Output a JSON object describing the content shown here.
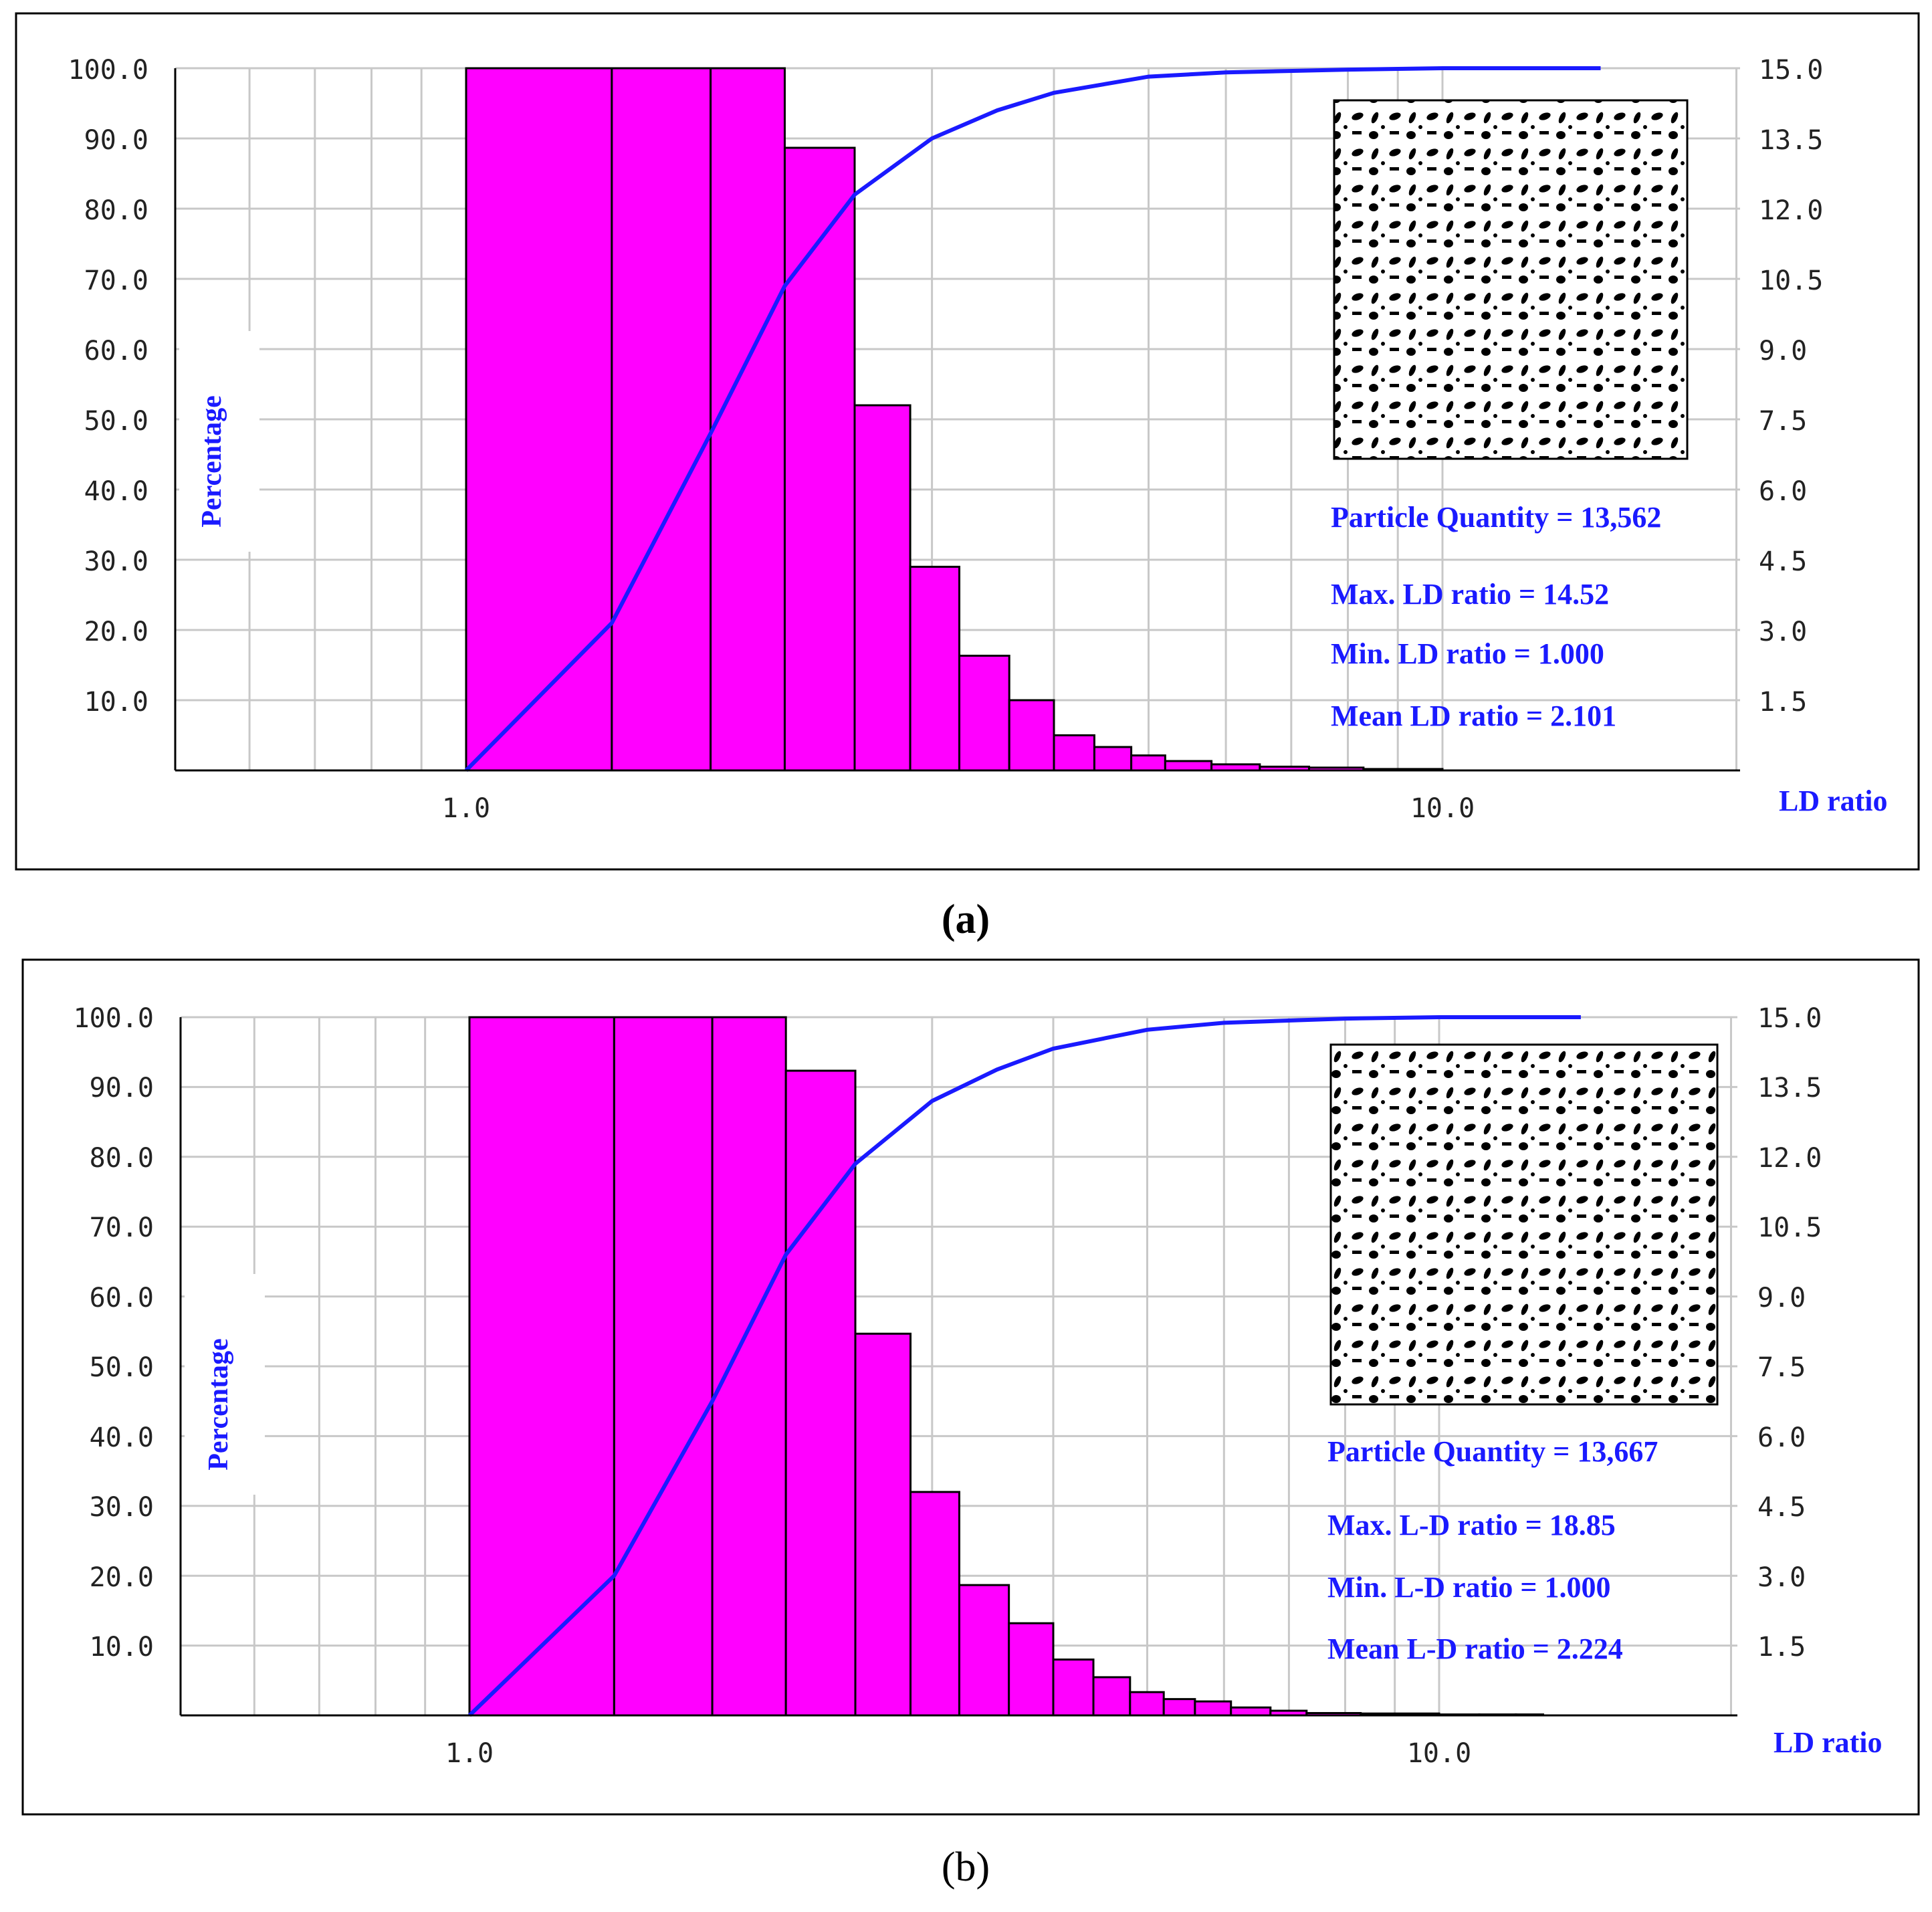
{
  "colors": {
    "bar_fill": "#ff00ff",
    "bar_stroke": "#000000",
    "curve": "#1a1aff",
    "grid": "#c8c8c8",
    "label_text": "#1a1aff",
    "tick_text": "#222222"
  },
  "chart_data": [
    {
      "caption": "(a)",
      "type": "bar",
      "subtype": "histogram with cumulative line, log x-axis",
      "x_scale": "log",
      "xlabel": "LD ratio",
      "ylabel": "Percentage",
      "left_ticks": [
        "100.0",
        "90.0",
        "80.0",
        "70.0",
        "60.0",
        "50.0",
        "40.0",
        "30.0",
        "20.0",
        "10.0"
      ],
      "right_ticks": [
        "15.0",
        "13.5",
        "12.0",
        "10.5",
        "9.0",
        "7.5",
        "6.0",
        "4.5",
        "3.0",
        "1.5"
      ],
      "x_ticks": [
        {
          "value": 1,
          "label": "1.0"
        },
        {
          "value": 10,
          "label": "10.0"
        }
      ],
      "xlim": [
        0.5,
        18
      ],
      "ylim_left": [
        0,
        100
      ],
      "ylim_right": [
        0,
        15
      ],
      "bin_edges": [
        1.0,
        1.41,
        1.78,
        2.12,
        2.5,
        2.85,
        3.2,
        3.6,
        4.0,
        4.4,
        4.8,
        5.2,
        5.8,
        6.5,
        7.3,
        8.3,
        10.0
      ],
      "bar_heights_right_axis": [
        15.0,
        15.0,
        15.0,
        13.3,
        7.8,
        4.35,
        2.45,
        1.5,
        0.75,
        0.5,
        0.32,
        0.2,
        0.13,
        0.08,
        0.06,
        0.03
      ],
      "cumulative_percent": {
        "x": [
          1.0,
          1.41,
          1.78,
          2.12,
          2.5,
          3.0,
          3.5,
          4.0,
          5.0,
          6.0,
          8.0,
          10.0,
          14.52
        ],
        "y": [
          0,
          21,
          48,
          69,
          82,
          90,
          94,
          96.5,
          98.8,
          99.4,
          99.8,
          100,
          100
        ]
      },
      "stats": [
        "Particle  Quantity  = 13,562",
        "Max. LD ratio  = 14.52",
        "Min. LD ratio  = 1.000",
        "Mean LD ratio  = 2.101"
      ]
    },
    {
      "caption": "(b)",
      "type": "bar",
      "subtype": "histogram with cumulative line, log x-axis",
      "x_scale": "log",
      "xlabel": "LD ratio",
      "ylabel": "Percentage",
      "left_ticks": [
        "100.0",
        "90.0",
        "80.0",
        "70.0",
        "60.0",
        "50.0",
        "40.0",
        "30.0",
        "20.0",
        "10.0"
      ],
      "right_ticks": [
        "15.0",
        "13.5",
        "12.0",
        "10.5",
        "9.0",
        "7.5",
        "6.0",
        "4.5",
        "3.0",
        "1.5"
      ],
      "x_ticks": [
        {
          "value": 1,
          "label": "1.0"
        },
        {
          "value": 10,
          "label": "10.0"
        }
      ],
      "xlim": [
        0.5,
        18
      ],
      "ylim_left": [
        0,
        100
      ],
      "ylim_right": [
        0,
        15
      ],
      "bin_edges": [
        1.0,
        1.41,
        1.78,
        2.12,
        2.5,
        2.85,
        3.2,
        3.6,
        4.0,
        4.4,
        4.8,
        5.2,
        5.6,
        6.1,
        6.7,
        7.3,
        8.3,
        10.0,
        11.0,
        12.0,
        12.8
      ],
      "bar_heights_right_axis": [
        15.0,
        15.0,
        15.0,
        13.85,
        8.2,
        4.8,
        2.8,
        1.98,
        1.2,
        0.82,
        0.5,
        0.35,
        0.3,
        0.17,
        0.1,
        0.05,
        0.04,
        0.02,
        0.02,
        0.02
      ],
      "cumulative_percent": {
        "x": [
          1.0,
          1.41,
          1.78,
          2.12,
          2.5,
          3.0,
          3.5,
          4.0,
          5.0,
          6.0,
          8.0,
          10.0,
          14.0
        ],
        "y": [
          0,
          20,
          45,
          66,
          79,
          88,
          92.5,
          95.5,
          98.2,
          99.2,
          99.8,
          100,
          100
        ]
      },
      "stats": [
        "Particle  Quantity  = 13,667",
        "Max. L-D ratio  = 18.85",
        "Min. L-D ratio  = 1.000",
        "Mean L-D ratio  = 2.224"
      ]
    }
  ]
}
